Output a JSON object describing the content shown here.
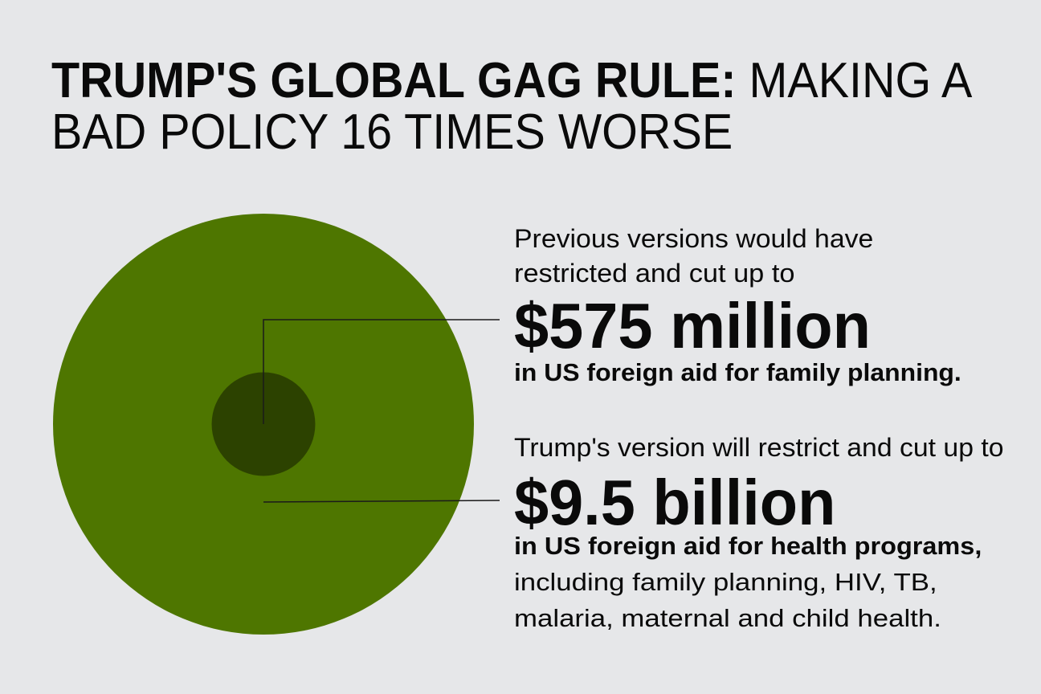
{
  "title": {
    "line1_bold": "TRUMP'S GLOBAL GAG RULE:",
    "line1_regular": " MAKING A",
    "line2": "BAD POLICY 16 TIMES WORSE"
  },
  "previous": {
    "intro_line1": "Previous versions would have",
    "intro_line2": "restricted and cut up to",
    "amount": "$575 million",
    "detail": "in US foreign aid for family planning."
  },
  "trump": {
    "intro": "Trump's version will restrict and cut up to",
    "amount": "$9.5 billion",
    "detail_bold": "in US foreign aid for health programs,",
    "detail_line2": "including family planning, HIV, TB,",
    "detail_line3": "malaria, maternal and child health."
  },
  "colors": {
    "background": "#e6e7e9",
    "large_circle": "#4e7600",
    "small_circle": "#2c4200",
    "leader_line": "#1a1a1a"
  },
  "chart_data": {
    "type": "proportional-circles",
    "unit": "USD",
    "items": [
      {
        "label": "$575 million",
        "value": 575000000,
        "color": "#2c4200"
      },
      {
        "label": "$9.5 billion",
        "value": 9500000000,
        "color": "#4e7600"
      }
    ]
  }
}
